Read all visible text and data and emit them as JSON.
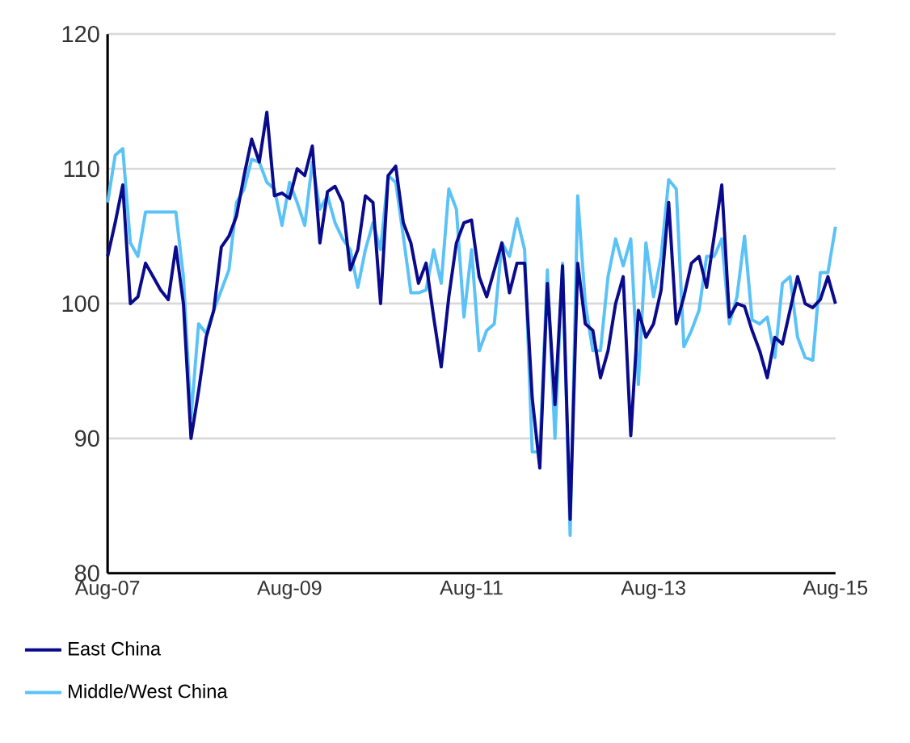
{
  "chart_data": {
    "type": "line",
    "x": [
      "2007-08",
      "2007-09",
      "2007-10",
      "2007-11",
      "2007-12",
      "2008-01",
      "2008-02",
      "2008-03",
      "2008-04",
      "2008-05",
      "2008-06",
      "2008-07",
      "2008-08",
      "2008-09",
      "2008-10",
      "2008-11",
      "2008-12",
      "2009-01",
      "2009-02",
      "2009-03",
      "2009-04",
      "2009-05",
      "2009-06",
      "2009-07",
      "2009-08",
      "2009-09",
      "2009-10",
      "2009-11",
      "2009-12",
      "2010-01",
      "2010-02",
      "2010-03",
      "2010-04",
      "2010-05",
      "2010-06",
      "2010-07",
      "2010-08",
      "2010-09",
      "2010-10",
      "2010-11",
      "2010-12",
      "2011-01",
      "2011-02",
      "2011-03",
      "2011-04",
      "2011-05",
      "2011-06",
      "2011-07",
      "2011-08",
      "2011-09",
      "2011-10",
      "2011-11",
      "2011-12",
      "2012-01",
      "2012-02",
      "2012-03",
      "2012-04",
      "2012-05",
      "2012-06",
      "2012-07",
      "2012-08",
      "2012-09",
      "2012-10",
      "2012-11",
      "2012-12",
      "2013-01",
      "2013-02",
      "2013-03",
      "2013-04",
      "2013-05",
      "2013-06",
      "2013-07",
      "2013-08",
      "2013-09",
      "2013-10",
      "2013-11",
      "2013-12",
      "2014-01",
      "2014-02",
      "2014-03",
      "2014-04",
      "2014-05",
      "2014-06",
      "2014-07",
      "2014-08",
      "2014-09",
      "2014-10",
      "2014-11",
      "2014-12",
      "2015-01",
      "2015-02",
      "2015-03",
      "2015-04",
      "2015-05",
      "2015-06",
      "2015-07",
      "2015-08"
    ],
    "series": [
      {
        "name": "East China",
        "color": "#0a0a8c",
        "values": [
          103.5,
          106,
          108.8,
          100,
          100.5,
          103,
          102,
          101,
          100.3,
          104.2,
          100,
          90,
          93.5,
          97.5,
          99.5,
          104.2,
          105,
          106.5,
          109.5,
          112.2,
          110.5,
          114.2,
          108,
          108.2,
          107.8,
          110,
          109.5,
          111.7,
          104.5,
          108.3,
          108.7,
          107.5,
          102.5,
          104,
          108,
          107.5,
          100,
          109.5,
          110.2,
          106,
          104.5,
          101.5,
          103,
          99,
          95.3,
          100.5,
          104.5,
          106,
          106.2,
          102,
          100.5,
          102.5,
          104.5,
          100.8,
          103,
          103,
          93,
          87.8,
          101.5,
          92.5,
          102.8,
          84,
          103,
          98.5,
          98,
          94.5,
          96.5,
          100,
          102,
          90.2,
          99.5,
          97.5,
          98.5,
          101,
          107.5,
          98.5,
          100.5,
          103,
          103.5,
          101.2,
          105,
          108.8,
          99,
          100,
          99.8,
          98,
          96.5,
          94.5,
          97.5,
          97,
          99.5,
          102,
          100,
          99.7,
          100.3,
          102,
          100
        ]
      },
      {
        "name": "Middle/West China",
        "color": "#5bc2f7",
        "values": [
          107.5,
          111,
          111.5,
          104.5,
          103.5,
          106.8,
          106.8,
          106.8,
          106.8,
          106.8,
          102,
          91.5,
          98.5,
          97.8,
          99.5,
          101,
          102.5,
          107.5,
          108.5,
          110.7,
          110.5,
          109,
          108.5,
          105.8,
          109,
          107.5,
          105.8,
          110.5,
          107,
          108,
          106,
          104.8,
          104,
          101.2,
          104,
          106,
          104,
          109.5,
          109,
          105,
          100.8,
          100.8,
          101,
          104,
          101.5,
          108.5,
          107,
          99,
          104,
          96.5,
          98,
          98.5,
          104.5,
          103.5,
          106.3,
          104,
          89,
          89,
          102.5,
          90,
          103,
          82.8,
          108,
          100,
          96.5,
          96.5,
          102,
          104.8,
          102.8,
          104.8,
          94,
          104.5,
          100.5,
          103.5,
          109.2,
          108.5,
          96.8,
          98,
          99.5,
          103.5,
          103.5,
          104.8,
          98.5,
          100.5,
          105,
          98.8,
          98.5,
          99,
          96,
          101.5,
          102,
          97.5,
          96,
          95.8,
          102.3,
          102.3,
          105.7
        ]
      }
    ],
    "xlim": [
      "2007-08",
      "2015-08"
    ],
    "xticks": [
      {
        "value": "2007-08",
        "label": "Aug-07"
      },
      {
        "value": "2009-08",
        "label": "Aug-09"
      },
      {
        "value": "2011-08",
        "label": "Aug-11"
      },
      {
        "value": "2013-08",
        "label": "Aug-13"
      },
      {
        "value": "2015-08",
        "label": "Aug-15"
      }
    ],
    "ylim": [
      80,
      120
    ],
    "yticks": [
      80,
      90,
      100,
      110,
      120
    ],
    "grid": "y",
    "legend": "bottom",
    "marker": "none",
    "line_style": "solid"
  }
}
